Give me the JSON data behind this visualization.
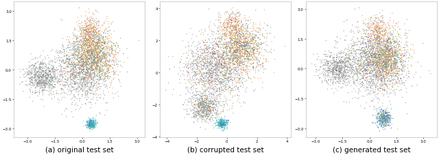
{
  "n_points": 4000,
  "colors_gray": "#888888",
  "colors_orange": "#ff8800",
  "colors_green": "#44aa44",
  "colors_salmon": "#cc8877",
  "colors_blue": "#3355cc",
  "colors_cyan": "#44cccc",
  "colors_purple": "#8844aa",
  "titles": [
    "(a) original test set",
    "(b) corrupted test set",
    "(c) generated test set"
  ],
  "tick_fontsize": 4,
  "title_fontsize": 7.5,
  "bg_color": "#ffffff",
  "point_size": 0.8,
  "point_alpha": 0.85,
  "figsize": [
    6.4,
    2.28
  ],
  "dpi": 100
}
